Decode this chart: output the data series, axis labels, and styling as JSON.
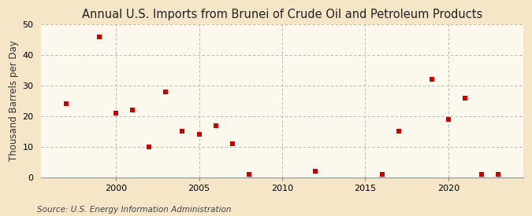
{
  "title": "Annual U.S. Imports from Brunei of Crude Oil and Petroleum Products",
  "ylabel": "Thousand Barrels per Day",
  "source": "Source: U.S. Energy Information Administration",
  "outer_bg": "#f5e6c8",
  "inner_bg": "#fdf8ee",
  "marker_color": "#cc0000",
  "x_data": [
    1997,
    1999,
    2000,
    2001,
    2002,
    2003,
    2004,
    2005,
    2006,
    2007,
    2008,
    2012,
    2016,
    2017,
    2019,
    2020,
    2021,
    2022,
    2023
  ],
  "y_data": [
    24,
    46,
    21,
    22,
    10,
    28,
    15,
    14,
    17,
    11,
    1,
    2,
    1,
    15,
    32,
    19,
    26,
    1,
    1
  ],
  "xlim": [
    1995.5,
    2024.5
  ],
  "ylim": [
    0,
    50
  ],
  "xticks": [
    2000,
    2005,
    2010,
    2015,
    2020
  ],
  "yticks": [
    0,
    10,
    20,
    30,
    40,
    50
  ],
  "grid_color": "#b0b0b0",
  "title_fontsize": 10.5,
  "label_fontsize": 8.5,
  "tick_fontsize": 8,
  "source_fontsize": 7.5
}
